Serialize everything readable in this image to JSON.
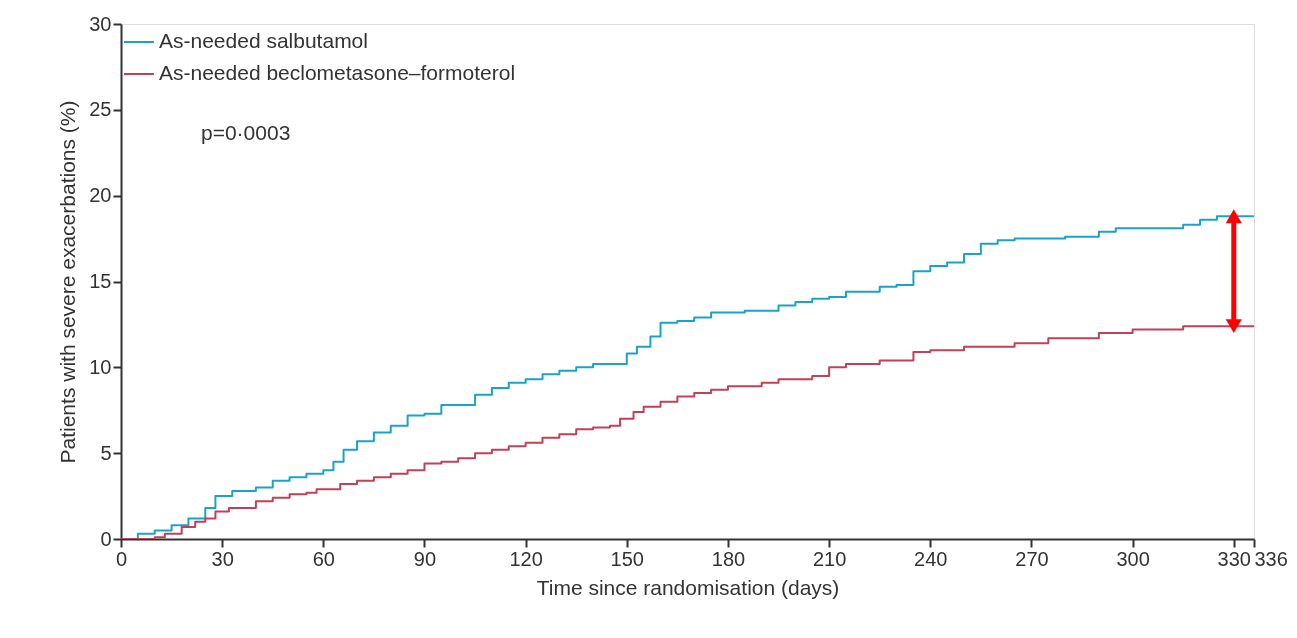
{
  "chart_data": {
    "type": "step",
    "xlabel": "Time since randomisation (days)",
    "ylabel": "Patients with severe exacerbations (%)",
    "xlim": [
      0,
      336
    ],
    "xticks": [
      0,
      30,
      60,
      90,
      120,
      150,
      180,
      210,
      240,
      270,
      300,
      330,
      336
    ],
    "ylim": [
      0,
      30
    ],
    "yticks": [
      0,
      5,
      10,
      15,
      20,
      25,
      30
    ],
    "grid": false,
    "legend": "top left",
    "annotations": [
      "p=0·0003"
    ],
    "series": [
      {
        "name": "As-needed salbutamol",
        "color": "#1ba3c6",
        "x": [
          0,
          5,
          10,
          15,
          20,
          25,
          28,
          33,
          40,
          45,
          50,
          55,
          60,
          63,
          66,
          70,
          75,
          80,
          85,
          90,
          95,
          103,
          105,
          110,
          115,
          120,
          125,
          130,
          135,
          140,
          148,
          150,
          153,
          157,
          160,
          165,
          170,
          175,
          185,
          195,
          200,
          205,
          210,
          215,
          225,
          230,
          235,
          240,
          245,
          250,
          255,
          260,
          265,
          280,
          290,
          295,
          315,
          320,
          325,
          336
        ],
        "values": [
          0,
          0.3,
          0.5,
          0.8,
          1.2,
          1.8,
          2.5,
          2.8,
          3.0,
          3.4,
          3.6,
          3.8,
          4.0,
          4.5,
          5.2,
          5.7,
          6.2,
          6.6,
          7.2,
          7.3,
          7.8,
          7.8,
          8.4,
          8.8,
          9.1,
          9.3,
          9.6,
          9.8,
          10.0,
          10.2,
          10.2,
          10.8,
          11.2,
          11.8,
          12.6,
          12.7,
          12.9,
          13.2,
          13.3,
          13.6,
          13.8,
          14.0,
          14.1,
          14.4,
          14.7,
          14.8,
          15.6,
          15.9,
          16.1,
          16.6,
          17.2,
          17.4,
          17.5,
          17.6,
          17.9,
          18.1,
          18.3,
          18.6,
          18.8,
          18.8
        ]
      },
      {
        "name": "As-needed beclometasone–formoterol",
        "color": "#c0415a",
        "x": [
          0,
          10,
          13,
          18,
          22,
          25,
          28,
          32,
          40,
          45,
          50,
          55,
          58,
          65,
          70,
          75,
          80,
          85,
          90,
          95,
          100,
          105,
          110,
          115,
          120,
          125,
          130,
          135,
          140,
          145,
          148,
          152,
          155,
          160,
          165,
          170,
          175,
          180,
          190,
          195,
          205,
          210,
          215,
          225,
          235,
          240,
          250,
          265,
          275,
          290,
          300,
          315,
          336
        ],
        "values": [
          0,
          0.1,
          0.3,
          0.7,
          1.0,
          1.2,
          1.6,
          1.8,
          2.2,
          2.4,
          2.6,
          2.7,
          2.9,
          3.2,
          3.4,
          3.6,
          3.8,
          4.0,
          4.4,
          4.5,
          4.7,
          5.0,
          5.2,
          5.4,
          5.6,
          5.9,
          6.1,
          6.4,
          6.5,
          6.6,
          7.0,
          7.4,
          7.7,
          8.0,
          8.3,
          8.5,
          8.7,
          8.9,
          9.1,
          9.3,
          9.5,
          10.0,
          10.2,
          10.4,
          10.9,
          11.0,
          11.2,
          11.4,
          11.7,
          12.0,
          12.2,
          12.4,
          12.4
        ]
      },
      {
        "type": "line",
        "color": "#ff0000",
        "marker": "triangle",
        "x": [
          330,
          330
        ],
        "values": [
          18.8,
          12.4
        ]
      }
    ]
  }
}
